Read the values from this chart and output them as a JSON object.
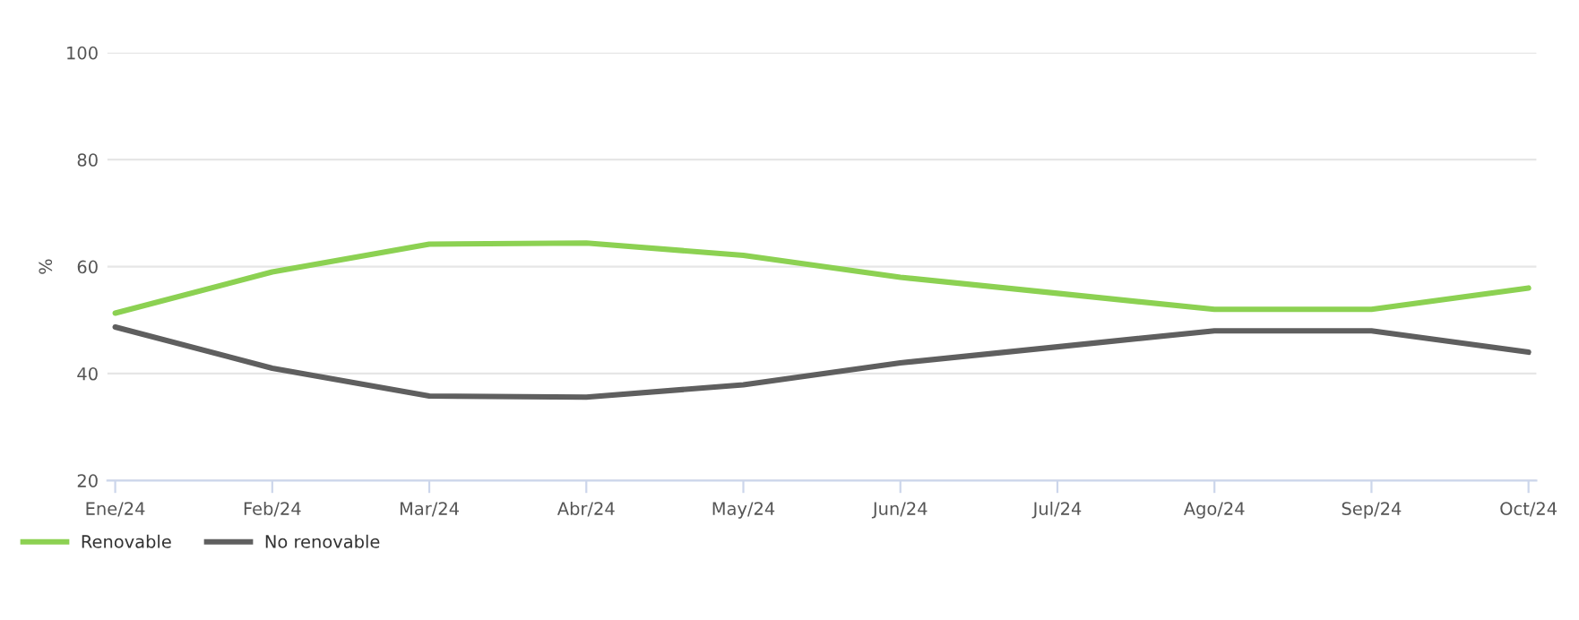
{
  "chart_data": {
    "type": "line",
    "ylabel": "%",
    "categories": [
      "Ene/24",
      "Feb/24",
      "Mar/24",
      "Abr/24",
      "May/24",
      "Jun/24",
      "Jul/24",
      "Ago/24",
      "Sep/24",
      "Oct/24"
    ],
    "series": [
      {
        "name": "Renovable",
        "color": "#8cd152",
        "values": [
          51.3,
          59,
          64.2,
          64.4,
          62.1,
          58,
          55,
          52,
          52,
          56
        ]
      },
      {
        "name": "No renovable",
        "color": "#5f5f5f",
        "values": [
          48.7,
          41,
          35.8,
          35.6,
          37.9,
          42,
          45,
          48,
          48,
          44
        ]
      }
    ],
    "ylim": [
      20,
      100
    ],
    "yticks": [
      20,
      40,
      60,
      80,
      100
    ],
    "grid": "y",
    "legend": "bottom left",
    "marker": "none",
    "line_style": "solid"
  }
}
